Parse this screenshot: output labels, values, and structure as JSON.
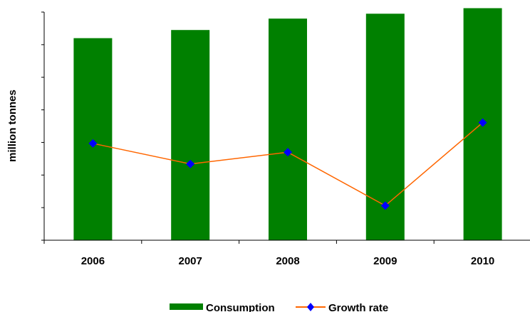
{
  "chart_data": {
    "type": "bar",
    "categories": [
      "2006",
      "2007",
      "2008",
      "2009",
      "2010"
    ],
    "series": [
      {
        "name": "Consumption",
        "type": "bar",
        "axis": "left",
        "color": "#008000",
        "values": [
          6.2,
          6.45,
          6.8,
          6.95,
          7.12
        ]
      },
      {
        "name": "Growth rate",
        "type": "line",
        "axis": "right",
        "color": "#FF6600",
        "marker_color": "#0000FF",
        "marker": "diamond",
        "values": [
          2.97,
          2.34,
          2.7,
          1.06,
          3.61
        ]
      }
    ],
    "xlabel": "",
    "ylabel": "million tonnes",
    "ylim": [
      0,
      7
    ],
    "y2lim": [
      0,
      7
    ],
    "ytick_count": 7,
    "grid": false,
    "legend_position": "bottom"
  }
}
